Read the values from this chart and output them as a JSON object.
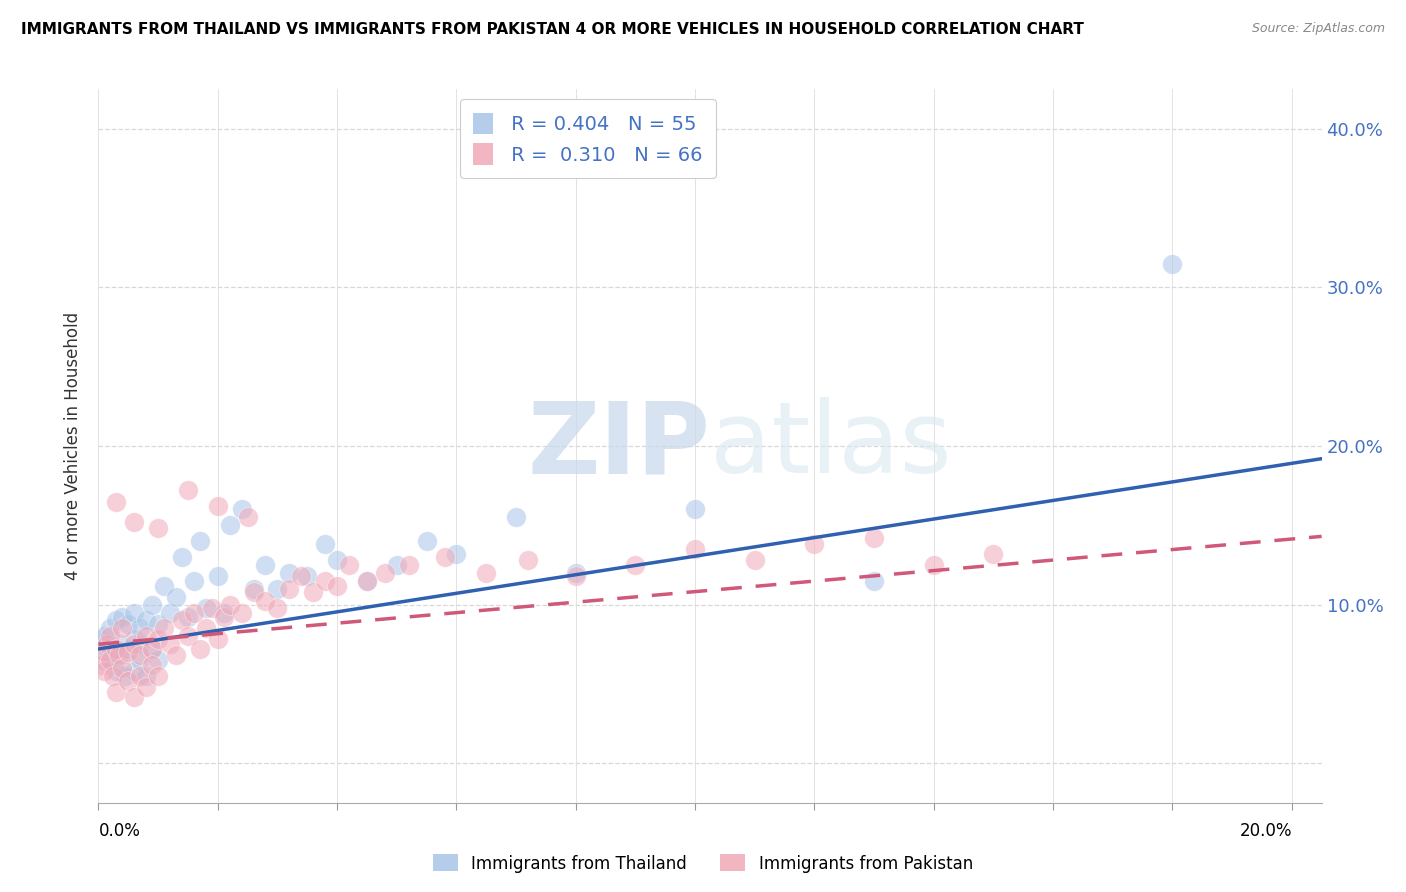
{
  "title": "IMMIGRANTS FROM THAILAND VS IMMIGRANTS FROM PAKISTAN 4 OR MORE VEHICLES IN HOUSEHOLD CORRELATION CHART",
  "source": "Source: ZipAtlas.com",
  "ylabel": "4 or more Vehicles in Household",
  "xlim": [
    0.0,
    0.205
  ],
  "ylim": [
    -0.025,
    0.425
  ],
  "ytick_vals": [
    0.0,
    0.1,
    0.2,
    0.3,
    0.4
  ],
  "ytick_labels": [
    "",
    "10.0%",
    "20.0%",
    "30.0%",
    "40.0%"
  ],
  "xtick_vals": [
    0.0,
    0.02,
    0.04,
    0.06,
    0.08,
    0.1,
    0.12,
    0.14,
    0.16,
    0.18,
    0.2
  ],
  "legend_r1": "R = 0.404",
  "legend_n1": "N = 55",
  "legend_r2": "R =  0.310",
  "legend_n2": "N = 66",
  "color_thailand": "#a8c4e8",
  "color_pakistan": "#f0a8b8",
  "color_line_thailand": "#3060b0",
  "color_line_pakistan": "#d05878",
  "watermark_zip": "ZIP",
  "watermark_atlas": "atlas",
  "thailand_line_x": [
    0.0,
    0.205
  ],
  "thailand_line_y": [
    0.072,
    0.192
  ],
  "pakistan_line_x": [
    0.0,
    0.205
  ],
  "pakistan_line_y": [
    0.075,
    0.143
  ],
  "background_color": "#ffffff",
  "grid_color": "#d8d8d8",
  "thailand_x": [
    0.0005,
    0.001,
    0.001,
    0.0015,
    0.002,
    0.002,
    0.0025,
    0.003,
    0.003,
    0.0035,
    0.004,
    0.004,
    0.0045,
    0.005,
    0.005,
    0.006,
    0.006,
    0.006,
    0.007,
    0.007,
    0.007,
    0.008,
    0.008,
    0.009,
    0.009,
    0.01,
    0.01,
    0.011,
    0.012,
    0.013,
    0.014,
    0.015,
    0.016,
    0.017,
    0.018,
    0.02,
    0.021,
    0.022,
    0.024,
    0.026,
    0.028,
    0.03,
    0.032,
    0.035,
    0.038,
    0.04,
    0.045,
    0.05,
    0.055,
    0.06,
    0.07,
    0.08,
    0.1,
    0.13,
    0.18
  ],
  "thailand_y": [
    0.078,
    0.065,
    0.08,
    0.072,
    0.068,
    0.085,
    0.062,
    0.058,
    0.09,
    0.075,
    0.068,
    0.092,
    0.055,
    0.072,
    0.088,
    0.078,
    0.095,
    0.058,
    0.075,
    0.085,
    0.065,
    0.09,
    0.055,
    0.1,
    0.072,
    0.088,
    0.065,
    0.112,
    0.095,
    0.105,
    0.13,
    0.092,
    0.115,
    0.14,
    0.098,
    0.118,
    0.095,
    0.15,
    0.16,
    0.11,
    0.125,
    0.11,
    0.12,
    0.118,
    0.138,
    0.128,
    0.115,
    0.125,
    0.14,
    0.132,
    0.155,
    0.12,
    0.16,
    0.115,
    0.315
  ],
  "pakistan_x": [
    0.0005,
    0.001,
    0.001,
    0.0015,
    0.002,
    0.002,
    0.0025,
    0.003,
    0.003,
    0.0035,
    0.004,
    0.004,
    0.005,
    0.005,
    0.006,
    0.006,
    0.007,
    0.007,
    0.008,
    0.008,
    0.009,
    0.009,
    0.01,
    0.01,
    0.011,
    0.012,
    0.013,
    0.014,
    0.015,
    0.016,
    0.017,
    0.018,
    0.019,
    0.02,
    0.021,
    0.022,
    0.024,
    0.026,
    0.028,
    0.03,
    0.032,
    0.034,
    0.036,
    0.038,
    0.04,
    0.042,
    0.045,
    0.048,
    0.052,
    0.058,
    0.065,
    0.072,
    0.08,
    0.09,
    0.1,
    0.11,
    0.12,
    0.13,
    0.14,
    0.15,
    0.003,
    0.006,
    0.01,
    0.015,
    0.02,
    0.025
  ],
  "pakistan_y": [
    0.062,
    0.07,
    0.058,
    0.075,
    0.065,
    0.08,
    0.055,
    0.072,
    0.045,
    0.068,
    0.06,
    0.085,
    0.07,
    0.052,
    0.075,
    0.042,
    0.068,
    0.055,
    0.08,
    0.048,
    0.072,
    0.062,
    0.078,
    0.055,
    0.085,
    0.075,
    0.068,
    0.09,
    0.08,
    0.095,
    0.072,
    0.085,
    0.098,
    0.078,
    0.092,
    0.1,
    0.095,
    0.108,
    0.102,
    0.098,
    0.11,
    0.118,
    0.108,
    0.115,
    0.112,
    0.125,
    0.115,
    0.12,
    0.125,
    0.13,
    0.12,
    0.128,
    0.118,
    0.125,
    0.135,
    0.128,
    0.138,
    0.142,
    0.125,
    0.132,
    0.165,
    0.152,
    0.148,
    0.172,
    0.162,
    0.155
  ]
}
